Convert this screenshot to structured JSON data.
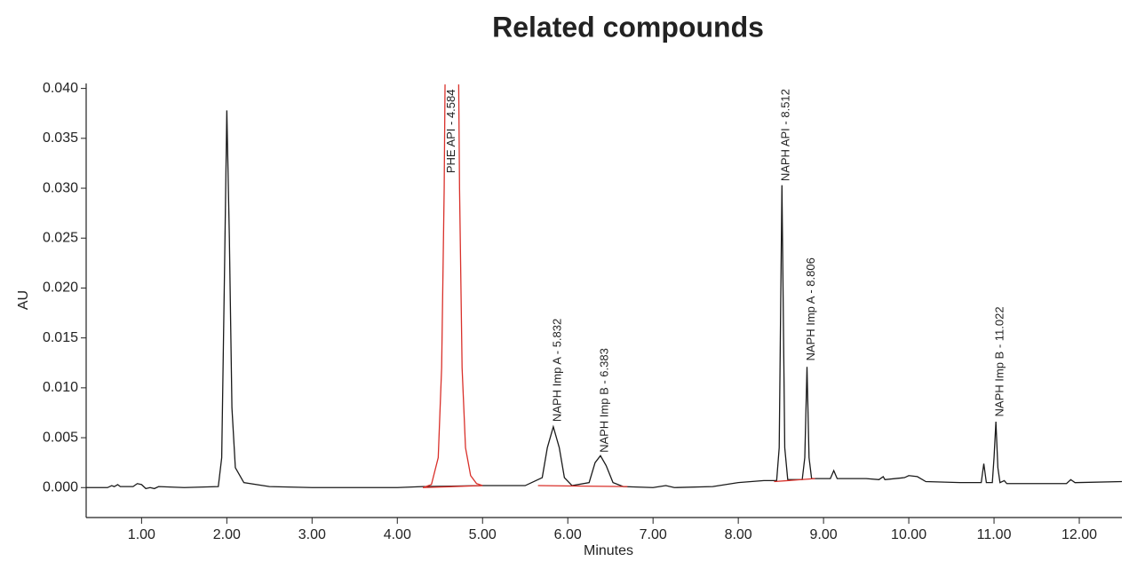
{
  "chart_data": {
    "type": "line",
    "title": "Related compounds",
    "x_label": "Minutes",
    "y_label": "AU",
    "xlim": [
      0.35,
      12.5
    ],
    "ylim": [
      -0.003,
      0.0405
    ],
    "xticks": [
      {
        "value": 1,
        "label": "1.00"
      },
      {
        "value": 2,
        "label": "2.00"
      },
      {
        "value": 3,
        "label": "3.00"
      },
      {
        "value": 4,
        "label": "4.00"
      },
      {
        "value": 5,
        "label": "5.00"
      },
      {
        "value": 6,
        "label": "6.00"
      },
      {
        "value": 7,
        "label": "7.00"
      },
      {
        "value": 8,
        "label": "8.00"
      },
      {
        "value": 9,
        "label": "9.00"
      },
      {
        "value": 10,
        "label": "10.00"
      },
      {
        "value": 11,
        "label": "11.00"
      },
      {
        "value": 12,
        "label": "12.00"
      }
    ],
    "yticks": [
      {
        "value": 0,
        "label": "0.000"
      },
      {
        "value": 0.005,
        "label": "0.005"
      },
      {
        "value": 0.01,
        "label": "0.010"
      },
      {
        "value": 0.015,
        "label": "0.015"
      },
      {
        "value": 0.02,
        "label": "0.020"
      },
      {
        "value": 0.025,
        "label": "0.025"
      },
      {
        "value": 0.03,
        "label": "0.030"
      },
      {
        "value": 0.035,
        "label": "0.035"
      },
      {
        "value": 0.04,
        "label": "0.040"
      }
    ],
    "grid": false,
    "series": [
      {
        "color": "#1a1a1a",
        "x": [
          0.35,
          0.6,
          0.65,
          0.68,
          0.72,
          0.75,
          0.9,
          0.95,
          1.0,
          1.05,
          1.1,
          1.15,
          1.2,
          1.5,
          1.9,
          1.94,
          1.97,
          2.0,
          2.03,
          2.06,
          2.1,
          2.2,
          2.5,
          3.0,
          4.0,
          4.3,
          5.0,
          5.5,
          5.7,
          5.76,
          5.83,
          5.9,
          5.96,
          6.05,
          6.25,
          6.32,
          6.383,
          6.45,
          6.53,
          6.65,
          7.0,
          7.15,
          7.25,
          7.7,
          8.0,
          8.3,
          8.45,
          8.48,
          8.512,
          8.545,
          8.58,
          8.75,
          8.78,
          8.806,
          8.83,
          8.86,
          9.08,
          9.12,
          9.16,
          9.5,
          9.65,
          9.7,
          9.72,
          9.95,
          10.0,
          10.1,
          10.2,
          10.6,
          10.85,
          10.88,
          10.91,
          10.98,
          11.0,
          11.022,
          11.045,
          11.07,
          11.12,
          11.15,
          11.85,
          11.9,
          11.95,
          12.5
        ],
        "values": [
          0,
          0,
          0.0002,
          0.0001,
          0.0003,
          0.0001,
          0.0001,
          0.0004,
          0.0003,
          -0.0001,
          0,
          -0.0001,
          0.0001,
          0,
          0.0001,
          0.003,
          0.02,
          0.0378,
          0.025,
          0.008,
          0.002,
          0.0005,
          0.0001,
          0,
          0,
          0.0001,
          0.0002,
          0.0002,
          0.001,
          0.004,
          0.0061,
          0.004,
          0.001,
          0.0002,
          0.0005,
          0.0025,
          0.0032,
          0.0022,
          0.0005,
          0.0001,
          0,
          0.0002,
          0,
          0.0001,
          0.0005,
          0.0007,
          0.0007,
          0.004,
          0.0303,
          0.004,
          0.0008,
          0.0008,
          0.003,
          0.0121,
          0.003,
          0.0009,
          0.0009,
          0.0017,
          0.0009,
          0.0009,
          0.0008,
          0.0011,
          0.0008,
          0.001,
          0.0012,
          0.0011,
          0.0006,
          0.0005,
          0.0005,
          0.0024,
          0.0005,
          0.0005,
          0.003,
          0.0066,
          0.002,
          0.0005,
          0.0007,
          0.0004,
          0.0004,
          0.0008,
          0.0005,
          0.0006
        ]
      },
      {
        "color": "#d9302a",
        "x": [
          4.3,
          4.4,
          4.48,
          4.52,
          4.55,
          4.56,
          4.64,
          4.72,
          4.73,
          4.76,
          4.8,
          4.86,
          4.93,
          5.0,
          5.01,
          4.3,
          5.0,
          5.02,
          5.65,
          6.7,
          6.72,
          8.42,
          8.9
        ],
        "values": [
          0,
          0.0003,
          0.003,
          0.012,
          0.03,
          0.0404,
          null,
          0.0404,
          0.03,
          0.012,
          0.004,
          0.0012,
          0.0004,
          0.0002,
          null,
          0,
          0.0002,
          null,
          0.0002,
          0.0001,
          null,
          0.0006,
          0.0009
        ]
      }
    ],
    "annotations": [
      {
        "text": "PHE API - 4.584",
        "x": 4.584,
        "y": 0.0315
      },
      {
        "text": "NAPH Imp A - 5.832",
        "x": 5.832,
        "y": 0.0066
      },
      {
        "text": "NAPH Imp B - 6.383",
        "x": 6.383,
        "y": 0.0035
      },
      {
        "text": "NAPH API - 8.512",
        "x": 8.512,
        "y": 0.0307
      },
      {
        "text": "NAPH Imp A - 8.806",
        "x": 8.806,
        "y": 0.0127
      },
      {
        "text": "NAPH Imp B - 11.022",
        "x": 11.022,
        "y": 0.0071
      }
    ]
  }
}
